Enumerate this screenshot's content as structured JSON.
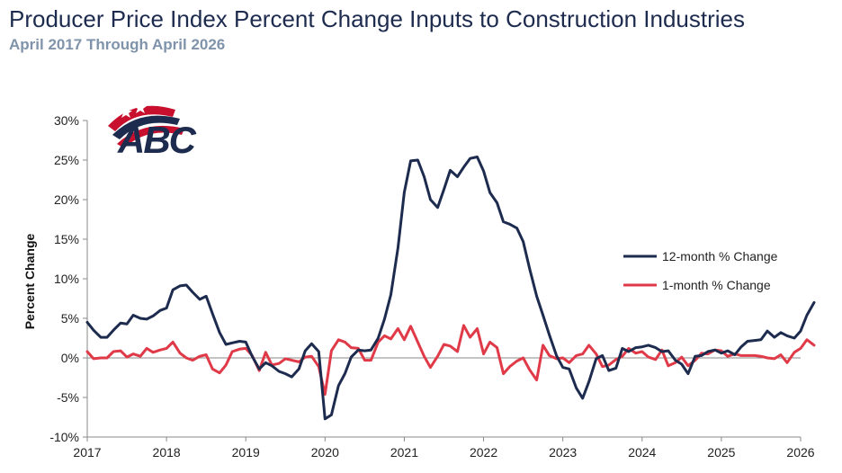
{
  "title": "Producer Price Index Percent Change Inputs to Construction Industries",
  "subtitle": "April 2017 Through April 2026",
  "logo": {
    "text": "ABC",
    "colors": {
      "navy": "#1d2b4f",
      "red": "#c8102e"
    }
  },
  "chart_data": {
    "type": "line",
    "title": "Producer Price Index Percent Change Inputs to Construction Industries",
    "subtitle": "April 2017 Through April 2026",
    "ylabel": "Percent Change",
    "xlabel": "",
    "ylim": [
      -10,
      30
    ],
    "xlim": [
      2017,
      2026
    ],
    "y_ticks": [
      -10,
      -5,
      0,
      5,
      10,
      15,
      20,
      25,
      30
    ],
    "y_tick_labels": [
      "-10%",
      "-5%",
      "0%",
      "5%",
      "10%",
      "15%",
      "20%",
      "25%",
      "30%"
    ],
    "x_ticks": [
      2017,
      2018,
      2019,
      2020,
      2021,
      2022,
      2023,
      2024,
      2025,
      2026
    ],
    "x_tick_labels": [
      "2017",
      "2018",
      "2019",
      "2020",
      "2021",
      "2022",
      "2023",
      "2024",
      "2025",
      "2026"
    ],
    "grid": false,
    "legend": "right",
    "series": [
      {
        "name": "12-month % Change",
        "color": "#1d2b4f",
        "points": [
          [
            2017.0,
            4.5
          ],
          [
            2017.08,
            3.5
          ],
          [
            2017.17,
            2.6
          ],
          [
            2017.25,
            2.6
          ],
          [
            2017.33,
            3.5
          ],
          [
            2017.42,
            4.4
          ],
          [
            2017.5,
            4.3
          ],
          [
            2017.58,
            5.4
          ],
          [
            2017.67,
            5.0
          ],
          [
            2017.75,
            4.9
          ],
          [
            2017.83,
            5.3
          ],
          [
            2017.92,
            6.0
          ],
          [
            2018.0,
            6.3
          ],
          [
            2018.08,
            8.6
          ],
          [
            2018.17,
            9.1
          ],
          [
            2018.25,
            9.2
          ],
          [
            2018.33,
            8.3
          ],
          [
            2018.42,
            7.4
          ],
          [
            2018.5,
            7.8
          ],
          [
            2018.58,
            5.6
          ],
          [
            2018.67,
            3.2
          ],
          [
            2018.75,
            1.7
          ],
          [
            2018.83,
            1.9
          ],
          [
            2018.92,
            2.1
          ],
          [
            2019.0,
            2.0
          ],
          [
            2019.08,
            0.2
          ],
          [
            2019.17,
            -1.4
          ],
          [
            2019.25,
            -0.6
          ],
          [
            2019.33,
            -1.0
          ],
          [
            2019.42,
            -1.7
          ],
          [
            2019.5,
            -2.0
          ],
          [
            2019.58,
            -2.4
          ],
          [
            2019.67,
            -1.4
          ],
          [
            2019.75,
            0.9
          ],
          [
            2019.83,
            1.8
          ],
          [
            2019.92,
            0.8
          ],
          [
            2020.0,
            -7.7
          ],
          [
            2020.08,
            -7.2
          ],
          [
            2020.17,
            -3.5
          ],
          [
            2020.25,
            -2.0
          ],
          [
            2020.33,
            0.1
          ],
          [
            2020.42,
            1.0
          ],
          [
            2020.5,
            0.9
          ],
          [
            2020.58,
            1.0
          ],
          [
            2020.67,
            2.5
          ],
          [
            2020.75,
            4.9
          ],
          [
            2020.83,
            8.0
          ],
          [
            2020.92,
            13.9
          ],
          [
            2021.0,
            20.9
          ],
          [
            2021.08,
            24.9
          ],
          [
            2021.17,
            25.0
          ],
          [
            2021.25,
            22.9
          ],
          [
            2021.33,
            20.0
          ],
          [
            2021.42,
            19.0
          ],
          [
            2021.5,
            21.3
          ],
          [
            2021.58,
            23.7
          ],
          [
            2021.67,
            22.9
          ],
          [
            2021.75,
            24.1
          ],
          [
            2021.83,
            25.2
          ],
          [
            2021.92,
            25.4
          ],
          [
            2022.0,
            23.6
          ],
          [
            2022.08,
            20.9
          ],
          [
            2022.17,
            19.6
          ],
          [
            2022.25,
            17.2
          ],
          [
            2022.33,
            16.9
          ],
          [
            2022.42,
            16.4
          ],
          [
            2022.5,
            14.7
          ],
          [
            2022.58,
            11.3
          ],
          [
            2022.67,
            7.8
          ],
          [
            2022.75,
            5.4
          ],
          [
            2022.83,
            2.9
          ],
          [
            2022.92,
            0.3
          ],
          [
            2023.0,
            -1.2
          ],
          [
            2023.08,
            -1.4
          ],
          [
            2023.17,
            -3.8
          ],
          [
            2023.25,
            -5.1
          ],
          [
            2023.33,
            -3.0
          ],
          [
            2023.42,
            -0.1
          ],
          [
            2023.5,
            0.3
          ],
          [
            2023.58,
            -1.6
          ],
          [
            2023.67,
            -1.3
          ],
          [
            2023.75,
            1.2
          ],
          [
            2023.83,
            0.8
          ],
          [
            2023.92,
            1.3
          ],
          [
            2024.0,
            1.4
          ],
          [
            2024.08,
            1.6
          ],
          [
            2024.17,
            1.3
          ],
          [
            2024.25,
            0.8
          ],
          [
            2024.33,
            0.9
          ],
          [
            2024.42,
            -0.3
          ],
          [
            2024.5,
            -0.8
          ],
          [
            2024.58,
            -2.0
          ],
          [
            2024.67,
            0.2
          ],
          [
            2024.75,
            0.3
          ],
          [
            2024.83,
            0.8
          ],
          [
            2024.92,
            1.0
          ],
          [
            2025.0,
            0.6
          ],
          [
            2025.08,
            0.9
          ],
          [
            2025.17,
            0.4
          ],
          [
            2025.25,
            1.4
          ],
          [
            2025.33,
            2.1
          ],
          [
            2025.42,
            2.2
          ],
          [
            2025.5,
            2.3
          ],
          [
            2025.58,
            3.4
          ],
          [
            2025.67,
            2.6
          ],
          [
            2025.75,
            3.2
          ],
          [
            2025.83,
            2.8
          ],
          [
            2025.92,
            2.5
          ],
          [
            2026.0,
            3.4
          ],
          [
            2026.08,
            5.4
          ],
          [
            2026.17,
            7.0
          ]
        ]
      },
      {
        "name": "1-month % Change",
        "color": "#e03a48",
        "points": [
          [
            2017.0,
            0.8
          ],
          [
            2017.08,
            -0.1
          ],
          [
            2017.17,
            0.0
          ],
          [
            2017.25,
            0.0
          ],
          [
            2017.33,
            0.8
          ],
          [
            2017.42,
            0.9
          ],
          [
            2017.5,
            0.1
          ],
          [
            2017.58,
            0.5
          ],
          [
            2017.67,
            0.2
          ],
          [
            2017.75,
            1.2
          ],
          [
            2017.83,
            0.7
          ],
          [
            2017.92,
            1.0
          ],
          [
            2018.0,
            1.2
          ],
          [
            2018.08,
            2.0
          ],
          [
            2018.17,
            0.6
          ],
          [
            2018.25,
            0.0
          ],
          [
            2018.33,
            -0.3
          ],
          [
            2018.42,
            0.2
          ],
          [
            2018.5,
            0.4
          ],
          [
            2018.58,
            -1.4
          ],
          [
            2018.67,
            -1.9
          ],
          [
            2018.75,
            -0.9
          ],
          [
            2018.83,
            0.8
          ],
          [
            2018.92,
            1.1
          ],
          [
            2019.0,
            1.2
          ],
          [
            2019.08,
            0.3
          ],
          [
            2019.17,
            -1.6
          ],
          [
            2019.25,
            0.7
          ],
          [
            2019.33,
            -0.9
          ],
          [
            2019.42,
            -0.7
          ],
          [
            2019.5,
            -0.1
          ],
          [
            2019.58,
            -0.3
          ],
          [
            2019.67,
            -0.5
          ],
          [
            2019.75,
            0.1
          ],
          [
            2019.83,
            0.2
          ],
          [
            2019.92,
            -1.1
          ],
          [
            2020.0,
            -4.6
          ],
          [
            2020.08,
            0.9
          ],
          [
            2020.17,
            2.3
          ],
          [
            2020.25,
            2.0
          ],
          [
            2020.33,
            1.3
          ],
          [
            2020.42,
            1.2
          ],
          [
            2020.5,
            -0.3
          ],
          [
            2020.58,
            -0.3
          ],
          [
            2020.67,
            2.0
          ],
          [
            2020.75,
            2.8
          ],
          [
            2020.83,
            2.4
          ],
          [
            2020.92,
            3.7
          ],
          [
            2021.0,
            2.3
          ],
          [
            2021.08,
            4.0
          ],
          [
            2021.17,
            2.0
          ],
          [
            2021.25,
            0.2
          ],
          [
            2021.33,
            -1.2
          ],
          [
            2021.42,
            0.2
          ],
          [
            2021.5,
            1.7
          ],
          [
            2021.58,
            1.5
          ],
          [
            2021.67,
            0.8
          ],
          [
            2021.75,
            4.1
          ],
          [
            2021.83,
            2.6
          ],
          [
            2021.92,
            3.7
          ],
          [
            2022.0,
            0.5
          ],
          [
            2022.08,
            2.0
          ],
          [
            2022.17,
            1.3
          ],
          [
            2022.25,
            -2.0
          ],
          [
            2022.33,
            -1.1
          ],
          [
            2022.42,
            -0.4
          ],
          [
            2022.5,
            0.0
          ],
          [
            2022.58,
            -1.5
          ],
          [
            2022.67,
            -2.8
          ],
          [
            2022.75,
            1.6
          ],
          [
            2022.83,
            0.3
          ],
          [
            2022.92,
            -0.1
          ],
          [
            2023.0,
            0.0
          ],
          [
            2023.08,
            -0.6
          ],
          [
            2023.17,
            0.3
          ],
          [
            2023.25,
            0.5
          ],
          [
            2023.33,
            1.6
          ],
          [
            2023.42,
            0.5
          ],
          [
            2023.5,
            -1.1
          ],
          [
            2023.58,
            -0.9
          ],
          [
            2023.67,
            -0.2
          ],
          [
            2023.75,
            0.2
          ],
          [
            2023.83,
            1.2
          ],
          [
            2023.92,
            0.6
          ],
          [
            2024.0,
            0.8
          ],
          [
            2024.08,
            0.1
          ],
          [
            2024.17,
            -0.2
          ],
          [
            2024.25,
            1.0
          ],
          [
            2024.33,
            -1.0
          ],
          [
            2024.42,
            -0.6
          ],
          [
            2024.5,
            0.1
          ],
          [
            2024.58,
            -1.0
          ],
          [
            2024.67,
            -0.3
          ],
          [
            2024.75,
            0.6
          ],
          [
            2024.83,
            0.5
          ],
          [
            2024.92,
            1.0
          ],
          [
            2025.0,
            0.9
          ],
          [
            2025.08,
            0.2
          ],
          [
            2025.17,
            0.5
          ],
          [
            2025.25,
            0.3
          ],
          [
            2025.33,
            0.3
          ],
          [
            2025.42,
            0.3
          ],
          [
            2025.5,
            0.2
          ],
          [
            2025.58,
            0.0
          ],
          [
            2025.67,
            -0.1
          ],
          [
            2025.75,
            0.4
          ],
          [
            2025.83,
            -0.6
          ],
          [
            2025.92,
            0.7
          ],
          [
            2026.0,
            1.2
          ],
          [
            2026.08,
            2.3
          ],
          [
            2026.17,
            1.6
          ]
        ]
      }
    ]
  }
}
